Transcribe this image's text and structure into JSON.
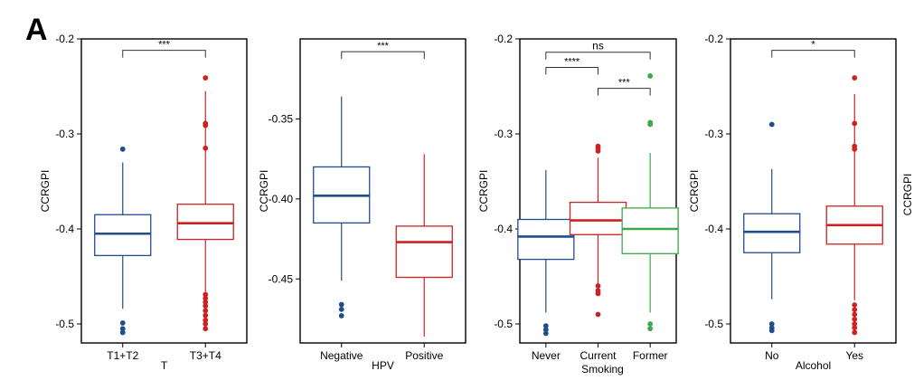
{
  "figure": {
    "panel_label": "A"
  },
  "colors": {
    "blue": "#1f4e8c",
    "red": "#cc2222",
    "green": "#3fa84a",
    "axis": "#000000",
    "bracket": "#333333"
  },
  "chart_data": [
    {
      "type": "boxplot",
      "ylabel": "CCRGPI",
      "xlabel": "T",
      "ylim": [
        -0.52,
        -0.2
      ],
      "yticks": [
        -0.2,
        -0.3,
        -0.4,
        -0.5
      ],
      "ytick_labels": [
        "-0.2",
        "-0.3",
        "-0.4",
        "-0.5"
      ],
      "groups": [
        {
          "name": "T1+T2",
          "color": "blue",
          "q1": -0.428,
          "median": -0.405,
          "q3": -0.385,
          "whisker_low": -0.484,
          "whisker_high": -0.33,
          "outliers": [
            -0.316,
            -0.499,
            -0.505,
            -0.509
          ]
        },
        {
          "name": "T3+T4",
          "color": "red",
          "q1": -0.411,
          "median": -0.394,
          "q3": -0.374,
          "whisker_low": -0.466,
          "whisker_high": -0.255,
          "outliers": [
            -0.241,
            -0.289,
            -0.291,
            -0.315,
            -0.469,
            -0.473,
            -0.477,
            -0.481,
            -0.486,
            -0.491,
            -0.496,
            -0.5,
            -0.505
          ]
        }
      ],
      "comparisons": [
        {
          "from": 0,
          "to": 1,
          "label": "***",
          "y": -0.212
        }
      ]
    },
    {
      "type": "boxplot",
      "ylabel": "CCRGPI",
      "xlabel": "HPV",
      "ylim": [
        -0.49,
        -0.3
      ],
      "yticks": [
        -0.35,
        -0.4,
        -0.45
      ],
      "ytick_labels": [
        "-0.35",
        "-0.40",
        "-0.45"
      ],
      "groups": [
        {
          "name": "Negative",
          "color": "blue",
          "q1": -0.415,
          "median": -0.398,
          "q3": -0.38,
          "whisker_low": -0.451,
          "whisker_high": -0.336,
          "outliers": [
            -0.466,
            -0.469,
            -0.473
          ]
        },
        {
          "name": "Positive",
          "color": "red",
          "q1": -0.449,
          "median": -0.427,
          "q3": -0.417,
          "whisker_low": -0.486,
          "whisker_high": -0.372,
          "outliers": []
        }
      ],
      "comparisons": [
        {
          "from": 0,
          "to": 1,
          "label": "***",
          "y": -0.308
        }
      ]
    },
    {
      "type": "boxplot",
      "ylabel": "CCRGPI",
      "xlabel": "Smoking",
      "ylim": [
        -0.52,
        -0.2
      ],
      "yticks": [
        -0.2,
        -0.3,
        -0.4,
        -0.5
      ],
      "ytick_labels": [
        "-0.2",
        "-0.3",
        "-0.4",
        "-0.5"
      ],
      "groups": [
        {
          "name": "Never",
          "color": "blue",
          "q1": -0.432,
          "median": -0.408,
          "q3": -0.39,
          "whisker_low": -0.488,
          "whisker_high": -0.338,
          "outliers": [
            -0.502,
            -0.506,
            -0.51
          ]
        },
        {
          "name": "Current",
          "color": "red",
          "q1": -0.406,
          "median": -0.391,
          "q3": -0.372,
          "whisker_low": -0.46,
          "whisker_high": -0.325,
          "outliers": [
            -0.313,
            -0.315,
            -0.318,
            -0.46,
            -0.465,
            -0.468,
            -0.49
          ]
        },
        {
          "name": "Former",
          "color": "green",
          "q1": -0.426,
          "median": -0.4,
          "q3": -0.378,
          "whisker_low": -0.488,
          "whisker_high": -0.32,
          "outliers": [
            -0.239,
            -0.288,
            -0.29,
            -0.5,
            -0.505
          ]
        }
      ],
      "comparisons": [
        {
          "from": 0,
          "to": 2,
          "label": "ns",
          "y": -0.214
        },
        {
          "from": 0,
          "to": 1,
          "label": "****",
          "y": -0.23
        },
        {
          "from": 1,
          "to": 2,
          "label": "***",
          "y": -0.252
        }
      ]
    },
    {
      "type": "boxplot",
      "ylabel": "CCRGPI",
      "xlabel": "Alcohol",
      "ylim": [
        -0.52,
        -0.2
      ],
      "yticks": [
        -0.2,
        -0.3,
        -0.4,
        -0.5
      ],
      "ytick_labels": [
        "-0.2",
        "-0.3",
        "-0.4",
        "-0.5"
      ],
      "groups": [
        {
          "name": "No",
          "color": "blue",
          "q1": -0.425,
          "median": -0.403,
          "q3": -0.384,
          "whisker_low": -0.474,
          "whisker_high": -0.337,
          "outliers": [
            -0.29,
            -0.5,
            -0.504,
            -0.507
          ]
        },
        {
          "name": "Yes",
          "color": "red",
          "q1": -0.416,
          "median": -0.396,
          "q3": -0.376,
          "whisker_low": -0.475,
          "whisker_high": -0.258,
          "outliers": [
            -0.241,
            -0.289,
            -0.313,
            -0.316,
            -0.48,
            -0.485,
            -0.49,
            -0.495,
            -0.5,
            -0.504,
            -0.509
          ]
        }
      ],
      "comparisons": [
        {
          "from": 0,
          "to": 1,
          "label": "*",
          "y": -0.212
        }
      ]
    }
  ],
  "trailing_ylabel": "CCRGPI"
}
